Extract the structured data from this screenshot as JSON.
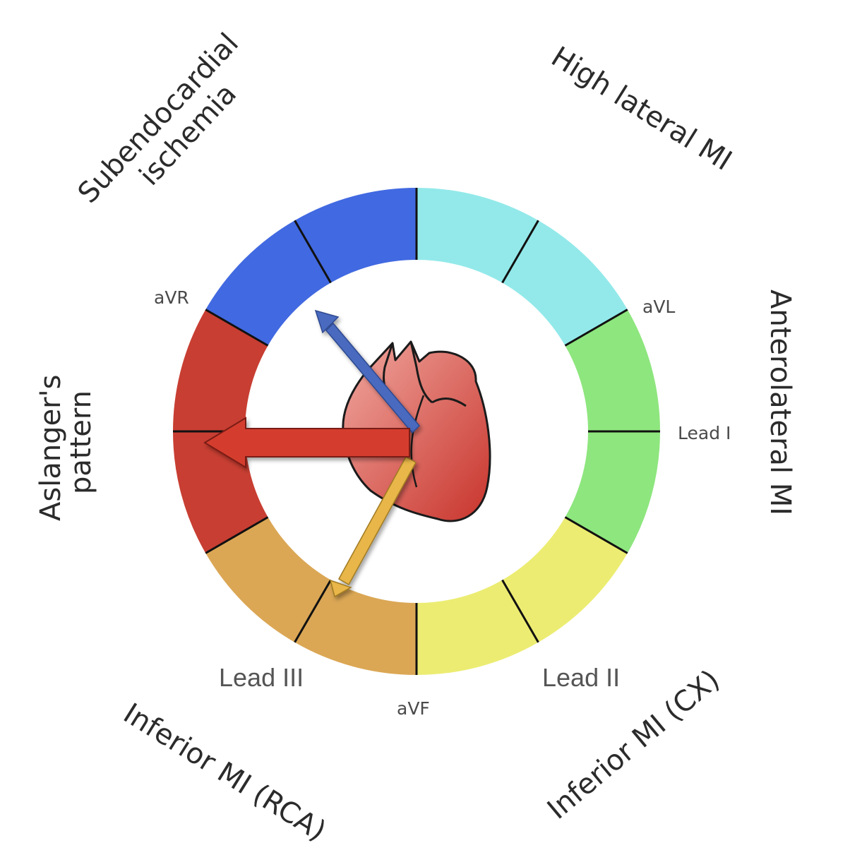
{
  "regions": {
    "subendocardial": [
      "Subendocardial",
      "ischemia"
    ],
    "high_lateral": "High lateral MI",
    "anterolateral": "Anterolateral MI",
    "aslanger": [
      "Aslanger's",
      "pattern"
    ],
    "inferior_rca": "Inferior MI (RCA)",
    "inferior_cx": "Inferior MI (CX)"
  },
  "leads": {
    "avr": "aVR",
    "avl": "aVL",
    "lead_i": "Lead I",
    "avf": "aVF",
    "lead_iii": "Lead III",
    "lead_ii": "Lead II"
  },
  "colors": {
    "blue": "#4169e1",
    "cyan": "#93e9ea",
    "green": "#8ee67e",
    "yellow": "#ecec72",
    "orange": "#dba755",
    "red": "#c83e32",
    "heart": "#d9504a",
    "arrow_blue": "#4a6bbf",
    "arrow_red": "#d43d2d",
    "arrow_yellow": "#e8b64a"
  }
}
